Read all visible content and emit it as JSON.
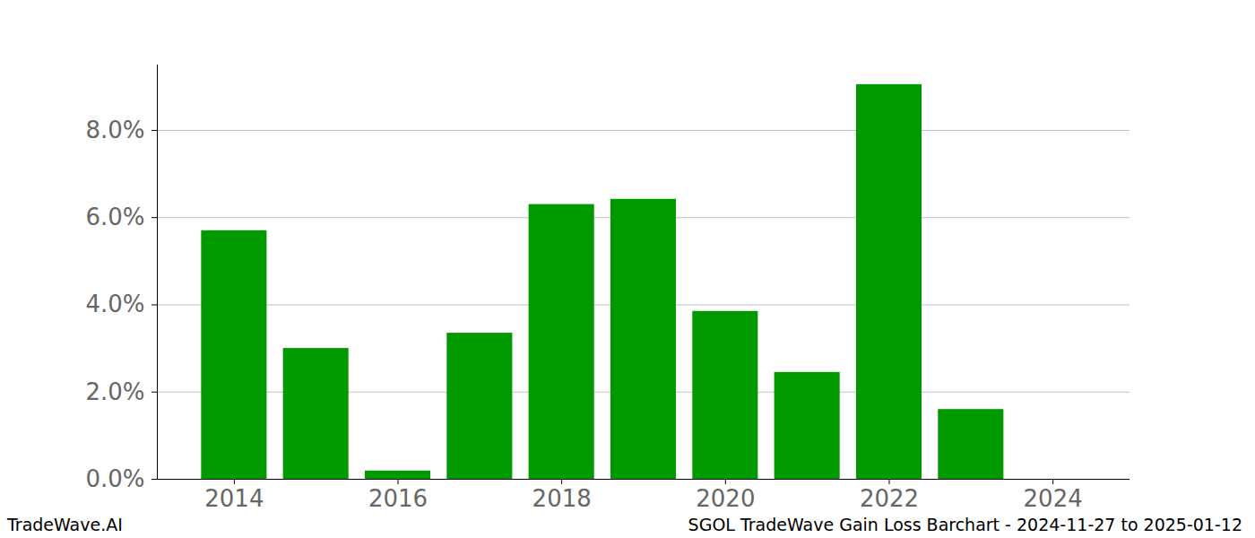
{
  "chart_data": {
    "type": "bar",
    "categories": [
      2014,
      2015,
      2016,
      2017,
      2018,
      2019,
      2020,
      2021,
      2022,
      2023,
      2024
    ],
    "values": [
      5.7,
      3.0,
      0.19,
      3.35,
      6.3,
      6.42,
      3.85,
      2.45,
      9.05,
      1.6,
      0
    ],
    "color": "#009900",
    "xlim": [
      2013.06,
      2024.94
    ],
    "xticks": [
      2014,
      2016,
      2018,
      2020,
      2022,
      2024
    ],
    "ylim": [
      0,
      9.5
    ],
    "yticks": [
      {
        "value": 0,
        "label": "0.0%"
      },
      {
        "value": 2,
        "label": "2.0%"
      },
      {
        "value": 4,
        "label": "4.0%"
      },
      {
        "value": 6,
        "label": "6.0%"
      },
      {
        "value": 8,
        "label": "8.0%"
      }
    ],
    "grid": true,
    "annotations": [
      "TradeWave.AI",
      "SGOL TradeWave Gain Loss Barchart - 2024-11-27 to 2025-01-12"
    ]
  }
}
